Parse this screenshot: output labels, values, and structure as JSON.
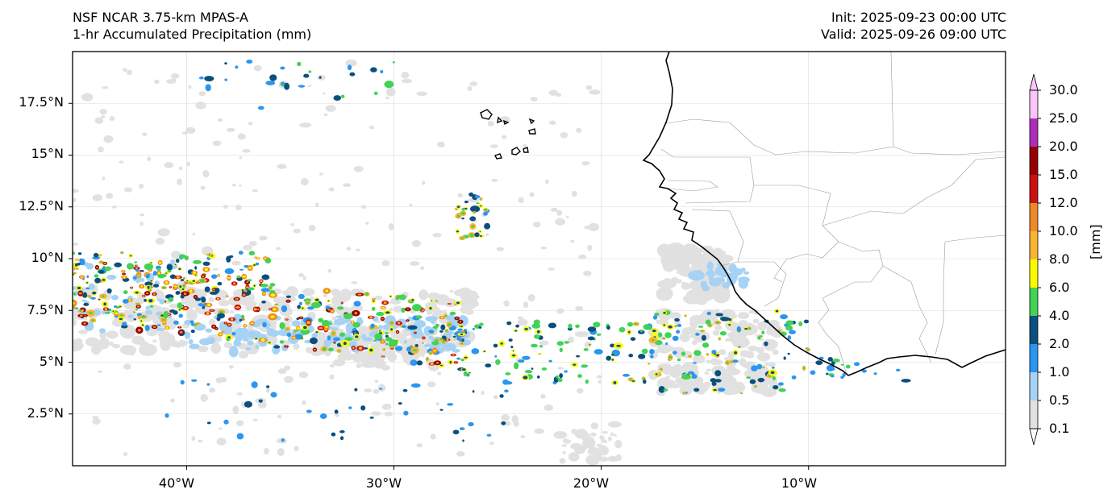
{
  "title": {
    "left_line1": "NSF NCAR 3.75-km MPAS-A",
    "left_line2": "1-hr Accumulated Precipitation (mm)",
    "right_line1": "Init: 2025-09-23 00:00 UTC",
    "right_line2": "Valid: 2025-09-26 09:00 UTC"
  },
  "map": {
    "lon_range": [
      -45.5,
      -0.5
    ],
    "lat_range": [
      0,
      20
    ],
    "lat_ticks": [
      "17.5°N",
      "15°N",
      "12.5°N",
      "10°N",
      "7.5°N",
      "5°N",
      "2.5°N"
    ],
    "lon_ticks": [
      "40°W",
      "30°W",
      "20°W",
      "10°W"
    ],
    "features": [
      "West African coastline",
      "Cabo Verde islands",
      "country borders"
    ]
  },
  "colorbar": {
    "unit_label": "[mm]",
    "levels": [
      "0.1",
      "0.5",
      "1.0",
      "2.0",
      "4.0",
      "6.0",
      "8.0",
      "10.0",
      "12.0",
      "15.0",
      "20.0",
      "25.0",
      "30.0"
    ],
    "colors": [
      "#e1e1e1",
      "#a5d2f5",
      "#2a96f0",
      "#0a4f7f",
      "#42d256",
      "#fcfa00",
      "#f8b530",
      "#ed8a27",
      "#cb1213",
      "#970000",
      "#ae2db8",
      "#fbc5fa"
    ]
  },
  "colors": {
    "coast": "#000000",
    "border": "#9a9a9a",
    "grid": "#d9d9d9"
  }
}
